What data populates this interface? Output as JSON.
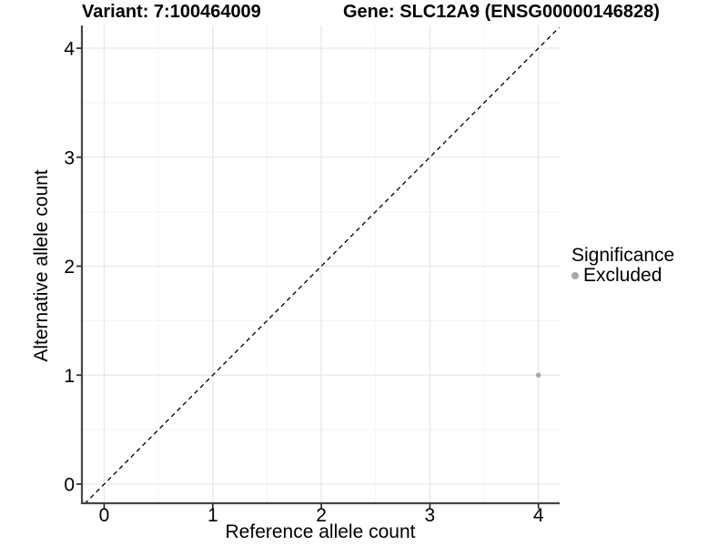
{
  "header": {
    "variant_title": "Variant: 7:100464009",
    "gene_title": "Gene: SLC12A9 (ENSG00000146828)"
  },
  "legend": {
    "title": "Significance",
    "items": [
      {
        "label": "Excluded",
        "color": "#a8a8a8"
      }
    ]
  },
  "chart_data": {
    "type": "scatter",
    "title": "Variant: 7:100464009   Gene: SLC12A9 (ENSG00000146828)",
    "xlabel": "Reference allele count",
    "ylabel": "Alternative allele count",
    "xlim": [
      -0.21,
      4.19
    ],
    "ylim": [
      -0.18,
      4.21
    ],
    "x_ticks": [
      0,
      1,
      2,
      3,
      4
    ],
    "y_ticks": [
      0,
      1,
      2,
      3,
      4
    ],
    "x_minor_ticks": [
      0.5,
      1.5,
      2.5,
      3.5
    ],
    "y_minor_ticks": [
      0.5,
      1.5,
      2.5,
      3.5
    ],
    "grid": "major+minor",
    "legend_position": "right",
    "legend_title": "Significance",
    "series": [
      {
        "name": "Excluded",
        "color": "#a8a8a8",
        "points": [
          {
            "x": 4,
            "y": 1
          }
        ]
      }
    ],
    "reference_line": {
      "slope": 1,
      "intercept": 0,
      "style": "dashed",
      "color": "#000000"
    }
  },
  "colors": {
    "background": "#ffffff",
    "grid_major": "#e7e7e7",
    "grid_minor": "#f2f2f2",
    "axis": "#454545",
    "tick": "#333333",
    "text": "#000000"
  }
}
